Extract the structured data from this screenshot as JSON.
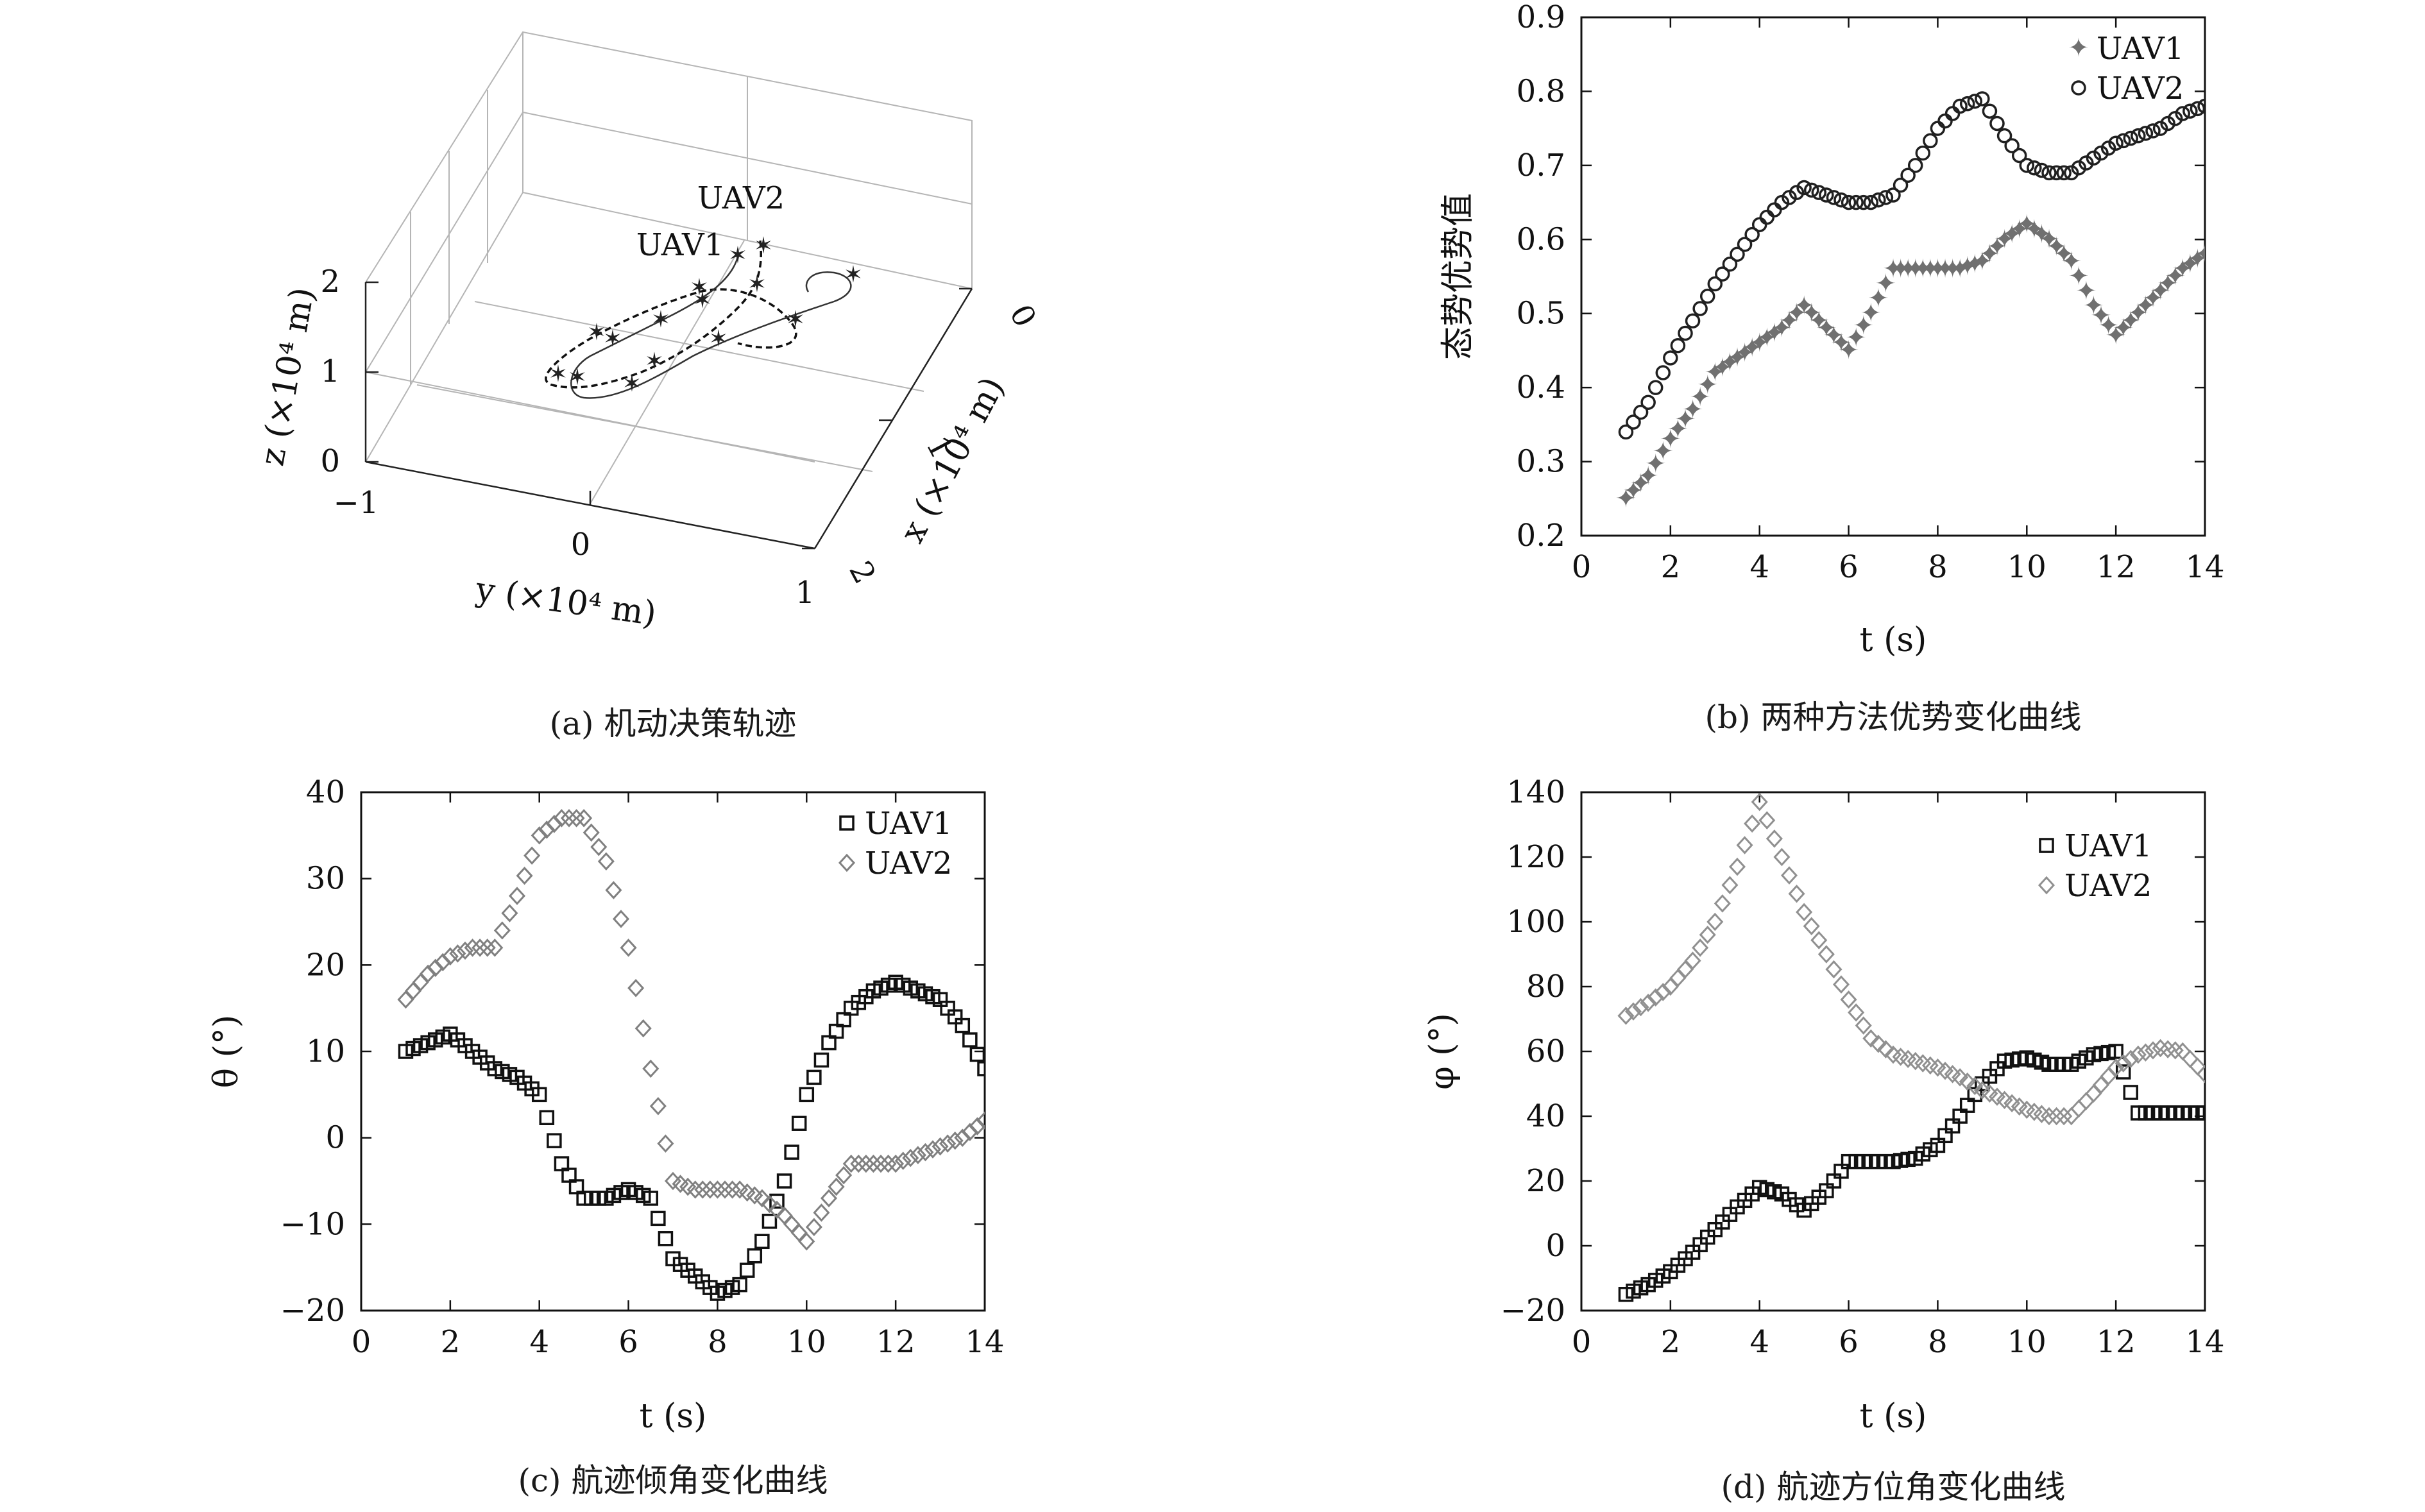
{
  "captions": {
    "a": "(a) 机动决策轨迹",
    "b": "(b) 两种方法优势变化曲线",
    "c": "(c) 航迹倾角变化曲线",
    "d": "(d) 航迹方位角变化曲线"
  },
  "panel_a": {
    "xlabel": "x (×10⁴ m)",
    "ylabel": "y (×10⁴ m)",
    "zlabel": "z (×10⁴ m)",
    "x_ticks": [
      "0",
      "1",
      "2"
    ],
    "y_ticks": [
      "−1",
      "0",
      "1"
    ],
    "z_ticks": [
      "0",
      "1",
      "2"
    ],
    "labels": [
      "UAV1",
      "UAV2"
    ]
  },
  "chart_data": [
    {
      "id": "b",
      "type": "scatter",
      "xlabel": "t (s)",
      "ylabel": "态势优势值",
      "xlim": [
        0,
        14
      ],
      "ylim": [
        0.2,
        0.9
      ],
      "x_ticks": [
        0,
        2,
        4,
        6,
        8,
        10,
        12,
        14
      ],
      "y_ticks": [
        0.2,
        0.3,
        0.4,
        0.5,
        0.6,
        0.7,
        0.8,
        0.9
      ],
      "legend_position": "top-right",
      "series": [
        {
          "name": "UAV1",
          "marker": "star",
          "color": "#707070",
          "x": [
            1.0,
            1.5,
            2.0,
            2.5,
            3.0,
            3.5,
            4.0,
            4.5,
            5.0,
            5.5,
            6.0,
            6.5,
            7.0,
            7.5,
            8.0,
            8.5,
            9.0,
            9.5,
            10.0,
            10.5,
            11.0,
            11.5,
            12.0,
            12.5,
            13.0,
            13.5,
            14.0
          ],
          "y": [
            0.25,
            0.28,
            0.33,
            0.37,
            0.42,
            0.44,
            0.46,
            0.48,
            0.51,
            0.48,
            0.45,
            0.5,
            0.56,
            0.56,
            0.56,
            0.56,
            0.57,
            0.6,
            0.62,
            0.6,
            0.57,
            0.51,
            0.47,
            0.5,
            0.53,
            0.56,
            0.58
          ]
        },
        {
          "name": "UAV2",
          "marker": "circle",
          "color": "#202020",
          "x": [
            1.0,
            1.5,
            2.0,
            2.5,
            3.0,
            3.5,
            4.0,
            4.5,
            5.0,
            5.5,
            6.0,
            6.5,
            7.0,
            7.5,
            8.0,
            8.5,
            9.0,
            9.5,
            10.0,
            10.5,
            11.0,
            11.5,
            12.0,
            12.5,
            13.0,
            13.5,
            14.0
          ],
          "y": [
            0.34,
            0.38,
            0.44,
            0.49,
            0.54,
            0.58,
            0.62,
            0.65,
            0.67,
            0.66,
            0.65,
            0.65,
            0.66,
            0.7,
            0.75,
            0.78,
            0.79,
            0.74,
            0.7,
            0.69,
            0.69,
            0.71,
            0.73,
            0.74,
            0.75,
            0.77,
            0.78
          ]
        }
      ]
    },
    {
      "id": "c",
      "type": "scatter",
      "xlabel": "t (s)",
      "ylabel": "θ (°)",
      "xlim": [
        0,
        14
      ],
      "ylim": [
        -20,
        40
      ],
      "x_ticks": [
        0,
        2,
        4,
        6,
        8,
        10,
        12,
        14
      ],
      "y_ticks": [
        -20,
        -10,
        0,
        10,
        20,
        30,
        40
      ],
      "legend_position": "top-right",
      "series": [
        {
          "name": "UAV1",
          "marker": "square",
          "color": "#111111",
          "x": [
            1.0,
            1.5,
            2.0,
            2.5,
            3.0,
            3.5,
            4.0,
            4.5,
            5.0,
            5.5,
            6.0,
            6.5,
            7.0,
            7.5,
            8.0,
            8.5,
            9.0,
            9.5,
            10.0,
            10.5,
            11.0,
            11.5,
            12.0,
            12.5,
            13.0,
            13.5,
            14.0
          ],
          "y": [
            10,
            11,
            12,
            10,
            8,
            7,
            5,
            -3,
            -7,
            -7,
            -6,
            -7,
            -14,
            -16,
            -18,
            -17,
            -12,
            -5,
            5,
            11,
            15,
            17,
            18,
            17,
            16,
            13,
            8
          ]
        },
        {
          "name": "UAV2",
          "marker": "diamond",
          "color": "#808080",
          "x": [
            1.0,
            1.5,
            2.0,
            2.5,
            3.0,
            3.5,
            4.0,
            4.5,
            5.0,
            5.5,
            6.0,
            6.5,
            7.0,
            7.5,
            8.0,
            8.5,
            9.0,
            9.5,
            10.0,
            10.5,
            11.0,
            11.5,
            12.0,
            12.5,
            13.0,
            13.5,
            14.0
          ],
          "y": [
            16,
            19,
            21,
            22,
            22,
            28,
            35,
            37,
            37,
            32,
            22,
            8,
            -5,
            -6,
            -6,
            -6,
            -7,
            -9,
            -12,
            -7,
            -3,
            -3,
            -3,
            -2,
            -1,
            0,
            2
          ]
        }
      ]
    },
    {
      "id": "d",
      "type": "scatter",
      "xlabel": "t (s)",
      "ylabel": "φ (°)",
      "xlim": [
        0,
        14
      ],
      "ylim": [
        -20,
        140
      ],
      "x_ticks": [
        0,
        2,
        4,
        6,
        8,
        10,
        12,
        14
      ],
      "y_ticks": [
        -20,
        0,
        20,
        40,
        60,
        80,
        100,
        120,
        140
      ],
      "legend_position": "top-right",
      "series": [
        {
          "name": "UAV1",
          "marker": "square",
          "color": "#111111",
          "x": [
            1.0,
            1.5,
            2.0,
            2.5,
            3.0,
            3.5,
            4.0,
            4.5,
            5.0,
            5.5,
            6.0,
            6.5,
            7.0,
            7.5,
            8.0,
            8.5,
            9.0,
            9.5,
            10.0,
            10.5,
            11.0,
            11.5,
            12.0,
            12.5,
            13.0,
            13.5,
            14.0
          ],
          "y": [
            -15,
            -12,
            -8,
            -2,
            5,
            12,
            18,
            16,
            11,
            17,
            26,
            26,
            26,
            27,
            31,
            40,
            50,
            57,
            58,
            56,
            56,
            59,
            60,
            41,
            41,
            41,
            41
          ]
        },
        {
          "name": "UAV2",
          "marker": "diamond",
          "color": "#909090",
          "x": [
            1.0,
            1.5,
            2.0,
            2.5,
            3.0,
            3.5,
            4.0,
            4.5,
            5.0,
            5.5,
            6.0,
            6.5,
            7.0,
            7.5,
            8.0,
            8.5,
            9.0,
            9.5,
            10.0,
            10.5,
            11.0,
            11.5,
            12.0,
            12.5,
            13.0,
            13.5,
            14.0
          ],
          "y": [
            71,
            75,
            80,
            88,
            100,
            117,
            137,
            120,
            103,
            90,
            76,
            64,
            59,
            57,
            55,
            52,
            48,
            45,
            42,
            40,
            40,
            47,
            55,
            59,
            61,
            60,
            53
          ]
        }
      ]
    }
  ]
}
